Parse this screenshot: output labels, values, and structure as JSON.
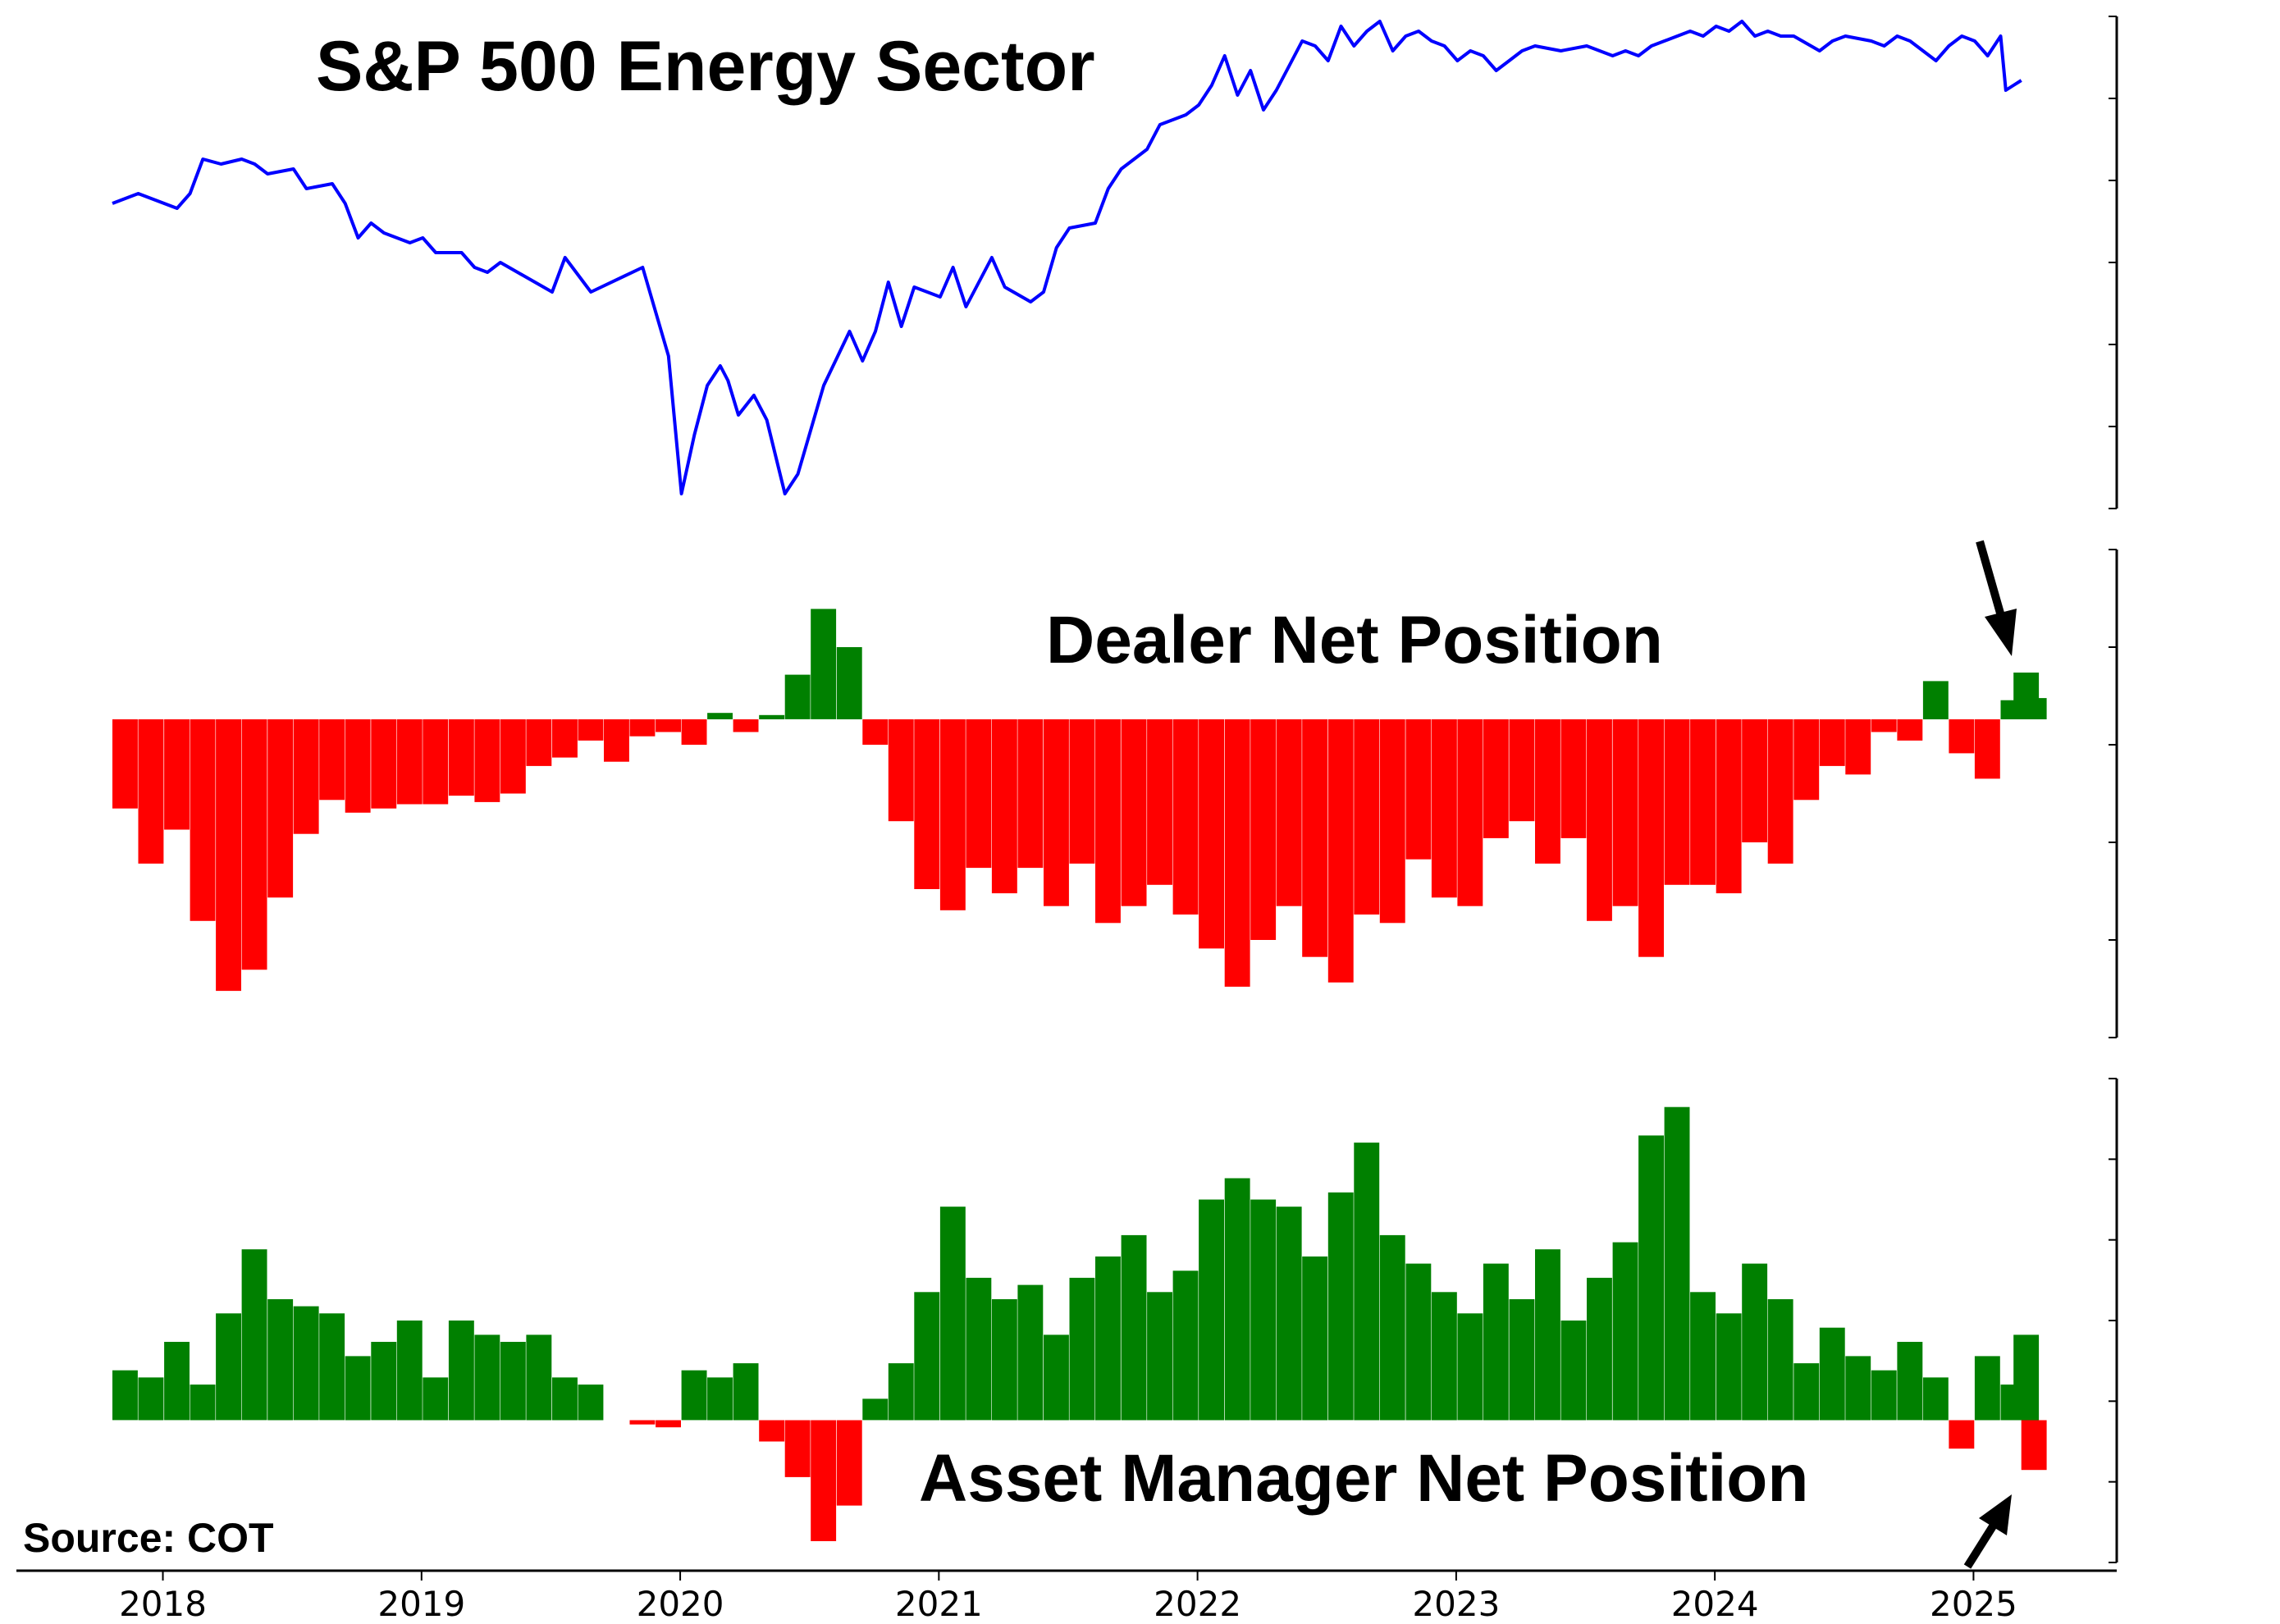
{
  "source_label": "Source: COT",
  "colors": {
    "price_line": "#0000ff",
    "positive_bar": "#008000",
    "negative_bar": "#ff0000",
    "axis": "#000000"
  },
  "chart_data": [
    {
      "type": "line",
      "title": "S&P 500 Energy Sector",
      "x_range": [
        2017.9,
        2025.3
      ],
      "y_range": [
        0,
        100
      ],
      "y_axis_side": "right",
      "y_tick_labels": "none",
      "x": [
        2017.9,
        2018.0,
        2018.15,
        2018.2,
        2018.25,
        2018.32,
        2018.4,
        2018.45,
        2018.5,
        2018.6,
        2018.65,
        2018.75,
        2018.8,
        2018.85,
        2018.9,
        2018.95,
        2019.05,
        2019.1,
        2019.15,
        2019.25,
        2019.3,
        2019.35,
        2019.4,
        2019.6,
        2019.65,
        2019.75,
        2019.95,
        2020.05,
        2020.1,
        2020.15,
        2020.2,
        2020.25,
        2020.28,
        2020.32,
        2020.38,
        2020.43,
        2020.5,
        2020.55,
        2020.65,
        2020.75,
        2020.8,
        2020.85,
        2020.9,
        2020.95,
        2021.0,
        2021.1,
        2021.15,
        2021.2,
        2021.3,
        2021.35,
        2021.45,
        2021.5,
        2021.55,
        2021.6,
        2021.7,
        2021.75,
        2021.8,
        2021.9,
        2021.95,
        2022.05,
        2022.1,
        2022.15,
        2022.2,
        2022.25,
        2022.3,
        2022.35,
        2022.4,
        2022.45,
        2022.5,
        2022.55,
        2022.6,
        2022.65,
        2022.7,
        2022.75,
        2022.8,
        2022.85,
        2022.9,
        2022.95,
        2023.0,
        2023.05,
        2023.1,
        2023.15,
        2023.2,
        2023.25,
        2023.3,
        2023.35,
        2023.4,
        2023.5,
        2023.6,
        2023.7,
        2023.75,
        2023.8,
        2023.85,
        2023.9,
        2023.95,
        2024.0,
        2024.05,
        2024.1,
        2024.15,
        2024.2,
        2024.25,
        2024.3,
        2024.35,
        2024.4,
        2024.5,
        2024.55,
        2024.6,
        2024.7,
        2024.75,
        2024.8,
        2024.85,
        2024.9,
        2024.95,
        2025.0,
        2025.05,
        2025.1,
        2025.15,
        2025.2,
        2025.22,
        2025.25,
        2025.28
      ],
      "y": [
        62,
        64,
        61,
        64,
        71,
        70,
        71,
        70,
        68,
        69,
        65,
        66,
        62,
        55,
        58,
        56,
        54,
        55,
        52,
        52,
        49,
        48,
        50,
        44,
        51,
        44,
        49,
        31,
        3,
        15,
        25,
        29,
        26,
        19,
        23,
        18,
        3,
        7,
        25,
        36,
        30,
        36,
        46,
        37,
        45,
        43,
        49,
        41,
        51,
        45,
        42,
        44,
        53,
        57,
        58,
        65,
        69,
        73,
        78,
        80,
        82,
        86,
        92,
        84,
        89,
        81,
        85,
        90,
        95,
        94,
        91,
        98,
        94,
        97,
        99,
        93,
        96,
        97,
        95,
        94,
        91,
        93,
        92,
        89,
        91,
        93,
        94,
        93,
        94,
        92,
        93,
        92,
        94,
        95,
        96,
        97,
        96,
        98,
        97,
        99,
        96,
        97,
        96,
        96,
        93,
        95,
        96,
        95,
        94,
        96,
        95,
        93,
        91,
        94,
        96,
        95,
        92,
        96,
        85,
        86,
        87
      ]
    },
    {
      "type": "bar",
      "title": "Dealer Net Position",
      "x_range": [
        2017.9,
        2025.3
      ],
      "y_range": [
        -150,
        80
      ],
      "y_axis_side": "right",
      "y_tick_labels": "none",
      "x": [
        2017.9,
        2018.0,
        2018.1,
        2018.2,
        2018.3,
        2018.4,
        2018.5,
        2018.6,
        2018.7,
        2018.8,
        2018.9,
        2019.0,
        2019.1,
        2019.2,
        2019.3,
        2019.4,
        2019.5,
        2019.6,
        2019.7,
        2019.8,
        2019.9,
        2020.0,
        2020.1,
        2020.2,
        2020.3,
        2020.4,
        2020.5,
        2020.6,
        2020.7,
        2020.8,
        2020.9,
        2021.0,
        2021.1,
        2021.2,
        2021.3,
        2021.4,
        2021.5,
        2021.6,
        2021.7,
        2021.8,
        2021.9,
        2022.0,
        2022.1,
        2022.2,
        2022.3,
        2022.4,
        2022.5,
        2022.6,
        2022.7,
        2022.8,
        2022.9,
        2023.0,
        2023.1,
        2023.2,
        2023.3,
        2023.4,
        2023.5,
        2023.6,
        2023.7,
        2023.8,
        2023.9,
        2024.0,
        2024.1,
        2024.2,
        2024.3,
        2024.4,
        2024.5,
        2024.6,
        2024.7,
        2024.8,
        2024.9,
        2025.0,
        2025.1,
        2025.2,
        2025.25,
        2025.28
      ],
      "values": [
        -42,
        -68,
        -52,
        -95,
        -128,
        -118,
        -84,
        -54,
        -38,
        -44,
        -42,
        -40,
        -40,
        -36,
        -39,
        -35,
        -22,
        -18,
        -10,
        -20,
        -8,
        -6,
        -12,
        3,
        -6,
        2,
        21,
        52,
        34,
        -12,
        -48,
        -80,
        -90,
        -70,
        -82,
        -70,
        -88,
        -68,
        -96,
        -88,
        -78,
        -92,
        -108,
        -126,
        -104,
        -88,
        -112,
        -124,
        -92,
        -96,
        -66,
        -84,
        -88,
        -56,
        -48,
        -68,
        -56,
        -95,
        -88,
        -112,
        -78,
        -78,
        -82,
        -58,
        -68,
        -38,
        -22,
        -26,
        -6,
        -10,
        18,
        -16,
        -28,
        9,
        22,
        10
      ]
    },
    {
      "type": "bar",
      "title": "Asset Manager Net Position",
      "x_range": [
        2017.9,
        2025.3
      ],
      "y_range": [
        -100,
        240
      ],
      "y_axis_side": "right",
      "y_tick_labels": "none",
      "x": [
        2017.9,
        2018.0,
        2018.1,
        2018.2,
        2018.3,
        2018.4,
        2018.5,
        2018.6,
        2018.7,
        2018.8,
        2018.9,
        2019.0,
        2019.1,
        2019.2,
        2019.3,
        2019.4,
        2019.5,
        2019.6,
        2019.7,
        2019.8,
        2019.9,
        2020.0,
        2020.1,
        2020.2,
        2020.3,
        2020.4,
        2020.5,
        2020.6,
        2020.7,
        2020.8,
        2020.9,
        2021.0,
        2021.1,
        2021.2,
        2021.3,
        2021.4,
        2021.5,
        2021.6,
        2021.7,
        2021.8,
        2021.9,
        2022.0,
        2022.1,
        2022.2,
        2022.3,
        2022.4,
        2022.5,
        2022.6,
        2022.7,
        2022.8,
        2022.9,
        2023.0,
        2023.1,
        2023.2,
        2023.3,
        2023.4,
        2023.5,
        2023.6,
        2023.7,
        2023.8,
        2023.9,
        2024.0,
        2024.1,
        2024.2,
        2024.3,
        2024.4,
        2024.5,
        2024.6,
        2024.7,
        2024.8,
        2024.9,
        2025.0,
        2025.1,
        2025.2,
        2025.25,
        2025.28
      ],
      "values": [
        35,
        30,
        55,
        25,
        75,
        120,
        85,
        80,
        75,
        45,
        55,
        70,
        30,
        70,
        60,
        55,
        60,
        30,
        25,
        0,
        -3,
        -5,
        35,
        30,
        40,
        -15,
        -40,
        -85,
        -60,
        15,
        40,
        90,
        150,
        100,
        85,
        95,
        60,
        100,
        115,
        130,
        90,
        105,
        155,
        170,
        155,
        150,
        115,
        160,
        195,
        130,
        110,
        90,
        75,
        110,
        85,
        120,
        70,
        100,
        125,
        200,
        220,
        90,
        75,
        110,
        85,
        40,
        65,
        45,
        35,
        55,
        30,
        -20,
        45,
        25,
        60,
        -35
      ]
    }
  ],
  "x_axis": {
    "tick_labels": [
      "2018",
      "2019",
      "2020",
      "2021",
      "2022",
      "2023",
      "2024",
      "2025"
    ],
    "tick_values": [
      2018,
      2019,
      2020,
      2021,
      2022,
      2023,
      2024,
      2025
    ]
  }
}
